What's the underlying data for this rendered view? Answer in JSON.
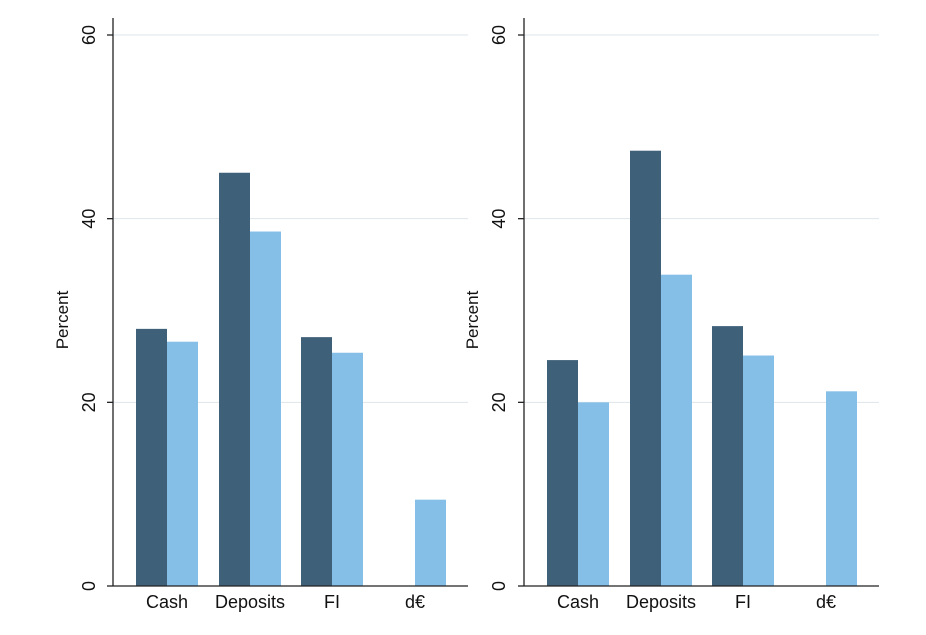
{
  "chart_data": [
    {
      "type": "bar",
      "ylabel": "Percent",
      "xlabel": "",
      "ylim": [
        0,
        60
      ],
      "yticks": [
        0,
        20,
        40,
        60
      ],
      "grid": true,
      "categories": [
        "Cash",
        "Deposits",
        "FI",
        "d€"
      ],
      "series": [
        {
          "values": [
            28.0,
            45.0,
            27.1,
            null
          ]
        },
        {
          "values": [
            26.6,
            38.6,
            25.4,
            9.4
          ]
        }
      ]
    },
    {
      "type": "bar",
      "ylabel": "Percent",
      "xlabel": "",
      "ylim": [
        0,
        60
      ],
      "yticks": [
        0,
        20,
        40,
        60
      ],
      "grid": true,
      "categories": [
        "Cash",
        "Deposits",
        "FI",
        "d€"
      ],
      "series": [
        {
          "values": [
            24.6,
            47.4,
            28.3,
            null
          ]
        },
        {
          "values": [
            20.0,
            33.9,
            25.1,
            21.2
          ]
        }
      ]
    }
  ],
  "colors": {
    "series": [
      "#3e6079",
      "#85bfe8"
    ],
    "grid": "#dfe5ea",
    "axis": "#222222"
  }
}
